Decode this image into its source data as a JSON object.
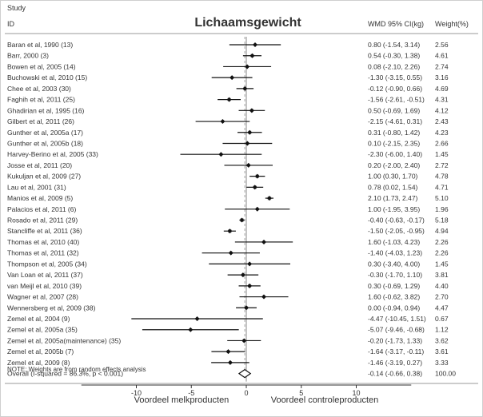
{
  "chart_data": {
    "type": "forest",
    "title": "Lichaamsgewicht",
    "header_study": "Study",
    "header_id": "ID",
    "header_wmd": "WMD  95% CI(kg)",
    "header_weight": "Weight(%)",
    "xlim": [
      -15,
      15
    ],
    "xticks": [
      -10,
      -5,
      0,
      5,
      10
    ],
    "xlabel_left": "Voordeel melkproducten",
    "xlabel_right": "Voordeel controleproducten",
    "note": "NOTE: Weights are from random effects analysis",
    "studies": [
      {
        "label": "Baran et al, 1990 (13)",
        "est": 0.8,
        "lo": -1.54,
        "hi": 3.14,
        "ci_text": "0.80 (-1.54, 3.14)",
        "weight": "2.56"
      },
      {
        "label": "Barr, 2000 (3)",
        "est": 0.54,
        "lo": -0.3,
        "hi": 1.38,
        "ci_text": "0.54 (-0.30, 1.38)",
        "weight": "4.61"
      },
      {
        "label": "Bowen et al, 2005 (14)",
        "est": 0.08,
        "lo": -2.1,
        "hi": 2.26,
        "ci_text": "0.08 (-2.10, 2.26)",
        "weight": "2.74"
      },
      {
        "label": "Buchowski et al, 2010 (15)",
        "est": -1.3,
        "lo": -3.15,
        "hi": 0.55,
        "ci_text": "-1.30 (-3.15, 0.55)",
        "weight": "3.16"
      },
      {
        "label": "Chee et al, 2003 (30)",
        "est": -0.12,
        "lo": -0.9,
        "hi": 0.66,
        "ci_text": "-0.12 (-0.90, 0.66)",
        "weight": "4.69"
      },
      {
        "label": "Faghih et al, 2011 (25)",
        "est": -1.56,
        "lo": -2.61,
        "hi": -0.51,
        "ci_text": "-1.56 (-2.61, -0.51)",
        "weight": "4.31"
      },
      {
        "label": "Ghadirian et al, 1995 (16)",
        "est": 0.5,
        "lo": -0.69,
        "hi": 1.69,
        "ci_text": "0.50 (-0.69, 1.69)",
        "weight": "4.12"
      },
      {
        "label": "Gilbert et al, 2011 (26)",
        "est": -2.15,
        "lo": -4.61,
        "hi": 0.31,
        "ci_text": "-2.15 (-4.61, 0.31)",
        "weight": "2.43"
      },
      {
        "label": "Gunther et al, 2005a (17)",
        "est": 0.31,
        "lo": -0.8,
        "hi": 1.42,
        "ci_text": "0.31 (-0.80, 1.42)",
        "weight": "4.23"
      },
      {
        "label": "Gunther et al, 2005b (18)",
        "est": 0.1,
        "lo": -2.15,
        "hi": 2.35,
        "ci_text": "0.10 (-2.15, 2.35)",
        "weight": "2.66"
      },
      {
        "label": "Harvey-Berino et al, 2005 (33)",
        "est": -2.3,
        "lo": -6.0,
        "hi": 1.4,
        "ci_text": "-2.30 (-6.00, 1.40)",
        "weight": "1.45"
      },
      {
        "label": "Josse et al, 2011 (20)",
        "est": 0.2,
        "lo": -2.0,
        "hi": 2.4,
        "ci_text": "0.20 (-2.00, 2.40)",
        "weight": "2.72"
      },
      {
        "label": "Kukuljan et al, 2009 (27)",
        "est": 1.0,
        "lo": 0.3,
        "hi": 1.7,
        "ci_text": "1.00 (0.30, 1.70)",
        "weight": "4.78"
      },
      {
        "label": "Lau et al, 2001 (31)",
        "est": 0.78,
        "lo": 0.02,
        "hi": 1.54,
        "ci_text": "0.78 (0.02, 1.54)",
        "weight": "4.71"
      },
      {
        "label": "Manios et al, 2009 (5)",
        "est": 2.1,
        "lo": 1.73,
        "hi": 2.47,
        "ci_text": "2.10 (1.73, 2.47)",
        "weight": "5.10"
      },
      {
        "label": "Palacios et al, 2011 (6)",
        "est": 1.0,
        "lo": -1.95,
        "hi": 3.95,
        "ci_text": "1.00 (-1.95, 3.95)",
        "weight": "1.96"
      },
      {
        "label": "Rosado et al, 2011 (29)",
        "est": -0.4,
        "lo": -0.63,
        "hi": -0.17,
        "ci_text": "-0.40 (-0.63, -0.17)",
        "weight": "5.18"
      },
      {
        "label": "Stancliffe et al, 2011 (36)",
        "est": -1.5,
        "lo": -2.05,
        "hi": -0.95,
        "ci_text": "-1.50 (-2.05, -0.95)",
        "weight": "4.94"
      },
      {
        "label": "Thomas et al, 2010 (40)",
        "est": 1.6,
        "lo": -1.03,
        "hi": 4.23,
        "ci_text": "1.60 (-1.03, 4.23)",
        "weight": "2.26"
      },
      {
        "label": "Thomas et al, 2011 (32)",
        "est": -1.4,
        "lo": -4.03,
        "hi": 1.23,
        "ci_text": "-1.40 (-4.03, 1.23)",
        "weight": "2.26"
      },
      {
        "label": "Thompson et al, 2005 (34)",
        "est": 0.3,
        "lo": -3.4,
        "hi": 4.0,
        "ci_text": "0.30 (-3.40, 4.00)",
        "weight": "1.45"
      },
      {
        "label": "Van Loan et al, 2011 (37)",
        "est": -0.3,
        "lo": -1.7,
        "hi": 1.1,
        "ci_text": "-0.30 (-1.70, 1.10)",
        "weight": "3.81"
      },
      {
        "label": "van Meijl et al, 2010 (39)",
        "est": 0.3,
        "lo": -0.69,
        "hi": 1.29,
        "ci_text": "0.30 (-0.69, 1.29)",
        "weight": "4.40"
      },
      {
        "label": "Wagner et al, 2007 (28)",
        "est": 1.6,
        "lo": -0.62,
        "hi": 3.82,
        "ci_text": "1.60 (-0.62, 3.82)",
        "weight": "2.70"
      },
      {
        "label": "Wennersberg et al, 2009 (38)",
        "est": 0.0,
        "lo": -0.94,
        "hi": 0.94,
        "ci_text": "0.00 (-0.94, 0.94)",
        "weight": "4.47"
      },
      {
        "label": "Zemel et al, 2004 (9)",
        "est": -4.47,
        "lo": -10.45,
        "hi": 1.51,
        "ci_text": "-4.47 (-10.45, 1.51)",
        "weight": "0.67"
      },
      {
        "label": "Zemel et al, 2005a (35)",
        "est": -5.07,
        "lo": -9.46,
        "hi": -0.68,
        "ci_text": "-5.07 (-9.46, -0.68)",
        "weight": "1.12"
      },
      {
        "label": "Zemel et al, 2005a(maintenance) (35)",
        "est": -0.2,
        "lo": -1.73,
        "hi": 1.33,
        "ci_text": "-0.20 (-1.73, 1.33)",
        "weight": "3.62"
      },
      {
        "label": "Zemel et al, 2005b (7)",
        "est": -1.64,
        "lo": -3.17,
        "hi": -0.11,
        "ci_text": "-1.64 (-3.17, -0.11)",
        "weight": "3.61"
      },
      {
        "label": "Zemel et al, 2009 (8)",
        "est": -1.46,
        "lo": -3.19,
        "hi": 0.27,
        "ci_text": "-1.46 (-3.19, 0.27)",
        "weight": "3.33"
      }
    ],
    "overall": {
      "label": "Overall  (I-squared = 86.3%, p < 0.001)",
      "est": -0.14,
      "lo": -0.66,
      "hi": 0.38,
      "ci_text": "-0.14 (-0.66, 0.38)",
      "weight": "100.00"
    }
  }
}
